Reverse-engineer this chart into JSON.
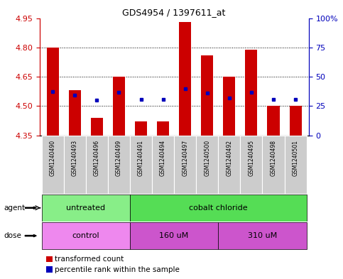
{
  "title": "GDS4954 / 1397611_at",
  "samples": [
    "GSM1240490",
    "GSM1240493",
    "GSM1240496",
    "GSM1240499",
    "GSM1240491",
    "GSM1240494",
    "GSM1240497",
    "GSM1240500",
    "GSM1240492",
    "GSM1240495",
    "GSM1240498",
    "GSM1240501"
  ],
  "bar_values": [
    4.8,
    4.58,
    4.44,
    4.65,
    4.42,
    4.42,
    4.93,
    4.76,
    4.65,
    4.79,
    4.5,
    4.5
  ],
  "blue_dot_values": [
    4.575,
    4.555,
    4.53,
    4.57,
    4.535,
    4.535,
    4.59,
    4.565,
    4.54,
    4.57,
    4.535,
    4.535
  ],
  "bar_bottom": 4.35,
  "ylim_min": 4.35,
  "ylim_max": 4.95,
  "yticks_left": [
    4.35,
    4.5,
    4.65,
    4.8,
    4.95
  ],
  "yticks_right_vals": [
    0,
    25,
    50,
    75,
    100
  ],
  "yticks_right_labels": [
    "0",
    "25",
    "50",
    "75",
    "100%"
  ],
  "hlines": [
    4.5,
    4.65,
    4.8
  ],
  "bar_color": "#cc0000",
  "blue_dot_color": "#0000bb",
  "agent_groups": [
    {
      "label": "untreated",
      "start": 0,
      "end": 4,
      "color": "#88ee88"
    },
    {
      "label": "cobalt chloride",
      "start": 4,
      "end": 12,
      "color": "#55dd55"
    }
  ],
  "dose_groups": [
    {
      "label": "control",
      "start": 0,
      "end": 4,
      "color": "#ee88ee"
    },
    {
      "label": "160 uM",
      "start": 4,
      "end": 8,
      "color": "#cc55cc"
    },
    {
      "label": "310 uM",
      "start": 8,
      "end": 12,
      "color": "#cc55cc"
    }
  ],
  "legend_bar_label": "transformed count",
  "legend_dot_label": "percentile rank within the sample",
  "left_axis_color": "#cc0000",
  "right_axis_color": "#0000bb",
  "grid_color": "#000000",
  "bg_color": "#ffffff",
  "sample_box_color": "#cccccc",
  "bar_width": 0.55
}
